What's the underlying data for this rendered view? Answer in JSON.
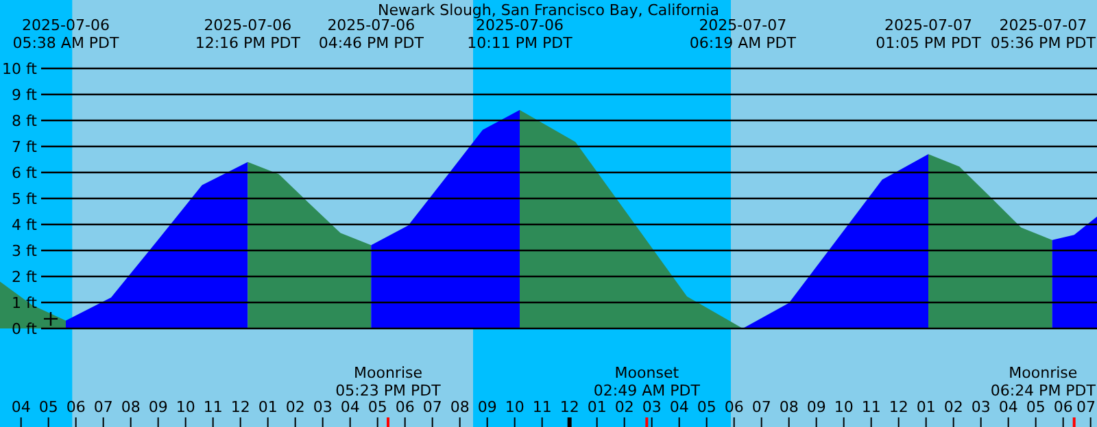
{
  "chart_data": {
    "type": "area",
    "title": "Newark Slough, San Francisco Bay, California",
    "xlim": [
      "2025-07-06T03:14",
      "2025-07-07T19:14"
    ],
    "ylim": [
      -3.79,
      12.63
    ],
    "xticks": [
      {
        "value": "2025-07-06T04:00",
        "label": "04"
      },
      {
        "value": "2025-07-06T05:00",
        "label": "05"
      },
      {
        "value": "2025-07-06T06:00",
        "label": "06"
      },
      {
        "value": "2025-07-06T07:00",
        "label": "07"
      },
      {
        "value": "2025-07-06T08:00",
        "label": "08"
      },
      {
        "value": "2025-07-06T09:00",
        "label": "09"
      },
      {
        "value": "2025-07-06T10:00",
        "label": "10"
      },
      {
        "value": "2025-07-06T11:00",
        "label": "11"
      },
      {
        "value": "2025-07-06T12:00",
        "label": "12"
      },
      {
        "value": "2025-07-06T13:00",
        "label": "01"
      },
      {
        "value": "2025-07-06T14:00",
        "label": "02"
      },
      {
        "value": "2025-07-06T15:00",
        "label": "03"
      },
      {
        "value": "2025-07-06T16:00",
        "label": "04"
      },
      {
        "value": "2025-07-06T17:00",
        "label": "05"
      },
      {
        "value": "2025-07-06T18:00",
        "label": "06"
      },
      {
        "value": "2025-07-06T19:00",
        "label": "07"
      },
      {
        "value": "2025-07-06T20:00",
        "label": "08"
      },
      {
        "value": "2025-07-06T21:00",
        "label": "09"
      },
      {
        "value": "2025-07-06T22:00",
        "label": "10"
      },
      {
        "value": "2025-07-06T23:00",
        "label": "11"
      },
      {
        "value": "2025-07-07T00:00",
        "label": "12"
      },
      {
        "value": "2025-07-07T01:00",
        "label": "01"
      },
      {
        "value": "2025-07-07T02:00",
        "label": "02"
      },
      {
        "value": "2025-07-07T03:00",
        "label": "03"
      },
      {
        "value": "2025-07-07T04:00",
        "label": "04"
      },
      {
        "value": "2025-07-07T05:00",
        "label": "05"
      },
      {
        "value": "2025-07-07T06:00",
        "label": "06"
      },
      {
        "value": "2025-07-07T07:00",
        "label": "07"
      },
      {
        "value": "2025-07-07T08:00",
        "label": "08"
      },
      {
        "value": "2025-07-07T09:00",
        "label": "09"
      },
      {
        "value": "2025-07-07T10:00",
        "label": "10"
      },
      {
        "value": "2025-07-07T11:00",
        "label": "11"
      },
      {
        "value": "2025-07-07T12:00",
        "label": "12"
      },
      {
        "value": "2025-07-07T13:00",
        "label": "01"
      },
      {
        "value": "2025-07-07T14:00",
        "label": "02"
      },
      {
        "value": "2025-07-07T15:00",
        "label": "03"
      },
      {
        "value": "2025-07-07T16:00",
        "label": "04"
      },
      {
        "value": "2025-07-07T17:00",
        "label": "05"
      },
      {
        "value": "2025-07-07T18:00",
        "label": "06"
      },
      {
        "value": "2025-07-07T19:00",
        "label": "07"
      }
    ],
    "yticks": [
      {
        "value": 0,
        "label": "0 ft"
      },
      {
        "value": 1,
        "label": "1 ft"
      },
      {
        "value": 2,
        "label": "2 ft"
      },
      {
        "value": 3,
        "label": "3 ft"
      },
      {
        "value": 4,
        "label": "4 ft"
      },
      {
        "value": 5,
        "label": "5 ft"
      },
      {
        "value": 6,
        "label": "6 ft"
      },
      {
        "value": 7,
        "label": "7 ft"
      },
      {
        "value": 8,
        "label": "8 ft"
      },
      {
        "value": 9,
        "label": "9 ft"
      },
      {
        "value": 10,
        "label": "10 ft"
      }
    ],
    "grid": "y",
    "series": [
      {
        "color": "#2e8b57",
        "x": [
          "2025-07-06T03:14",
          "2025-07-06T04:24",
          "2025-07-06T05:38"
        ],
        "values": [
          1.8,
          0.9,
          0.3
        ]
      },
      {
        "color": "#0000ff",
        "x": [
          "2025-07-06T05:38",
          "2025-07-06T07:17",
          "2025-07-06T08:57",
          "2025-07-06T10:36",
          "2025-07-06T12:16"
        ],
        "values": [
          0.3,
          1.19,
          3.35,
          5.51,
          6.4
        ]
      },
      {
        "color": "#2e8b57",
        "x": [
          "2025-07-06T12:16",
          "2025-07-06T13:24",
          "2025-07-06T14:31",
          "2025-07-06T15:39",
          "2025-07-06T16:46"
        ],
        "values": [
          6.4,
          5.93,
          4.8,
          3.67,
          3.2
        ]
      },
      {
        "color": "#0000ff",
        "x": [
          "2025-07-06T16:46",
          "2025-07-06T18:07",
          "2025-07-06T19:29",
          "2025-07-06T20:50",
          "2025-07-06T22:11"
        ],
        "values": [
          3.2,
          3.96,
          5.8,
          7.64,
          8.4
        ]
      },
      {
        "color": "#2e8b57",
        "x": [
          "2025-07-06T22:11",
          "2025-07-07T00:13",
          "2025-07-07T02:15",
          "2025-07-07T04:17",
          "2025-07-07T06:19"
        ],
        "values": [
          8.4,
          7.17,
          4.2,
          1.23,
          0.0
        ]
      },
      {
        "color": "#0000ff",
        "x": [
          "2025-07-07T06:19",
          "2025-07-07T08:00",
          "2025-07-07T09:42",
          "2025-07-07T11:24",
          "2025-07-07T13:05"
        ],
        "values": [
          0.0,
          0.98,
          3.35,
          5.72,
          6.7
        ]
      },
      {
        "color": "#2e8b57",
        "x": [
          "2025-07-07T13:05",
          "2025-07-07T14:13",
          "2025-07-07T15:21",
          "2025-07-07T16:28",
          "2025-07-07T17:36"
        ],
        "values": [
          6.7,
          6.22,
          5.05,
          3.88,
          3.4
        ]
      },
      {
        "color": "#0000ff",
        "x": [
          "2025-07-07T17:36",
          "2025-07-07T18:24",
          "2025-07-07T19:14"
        ],
        "values": [
          3.4,
          3.6,
          4.3
        ]
      },
      {
        "type": "scatter",
        "marker": "cross",
        "color": "#000000",
        "x": [
          "2025-07-06T05:05"
        ],
        "values": [
          0.37
        ]
      }
    ],
    "bands": [
      {
        "axis": "x",
        "from": "2025-07-06T03:14",
        "to": "2025-07-06T05:52",
        "color": "#00bfff"
      },
      {
        "axis": "x",
        "from": "2025-07-06T20:29",
        "to": "2025-07-07T05:53",
        "color": "#00bfff"
      }
    ],
    "annotations": [
      "2025-07-06 05:38 AM PDT",
      "2025-07-06 12:16 PM PDT",
      "2025-07-06 04:46 PM PDT",
      "2025-07-06 10:11 PM PDT",
      "2025-07-07 06:19 AM PDT",
      "2025-07-07 01:05 PM PDT",
      "2025-07-07 05:36 PM PDT",
      "Moonrise 05:23 PM PDT",
      "Moonset 02:49 AM PDT",
      "Moonrise 06:24 PM PDT"
    ]
  }
}
